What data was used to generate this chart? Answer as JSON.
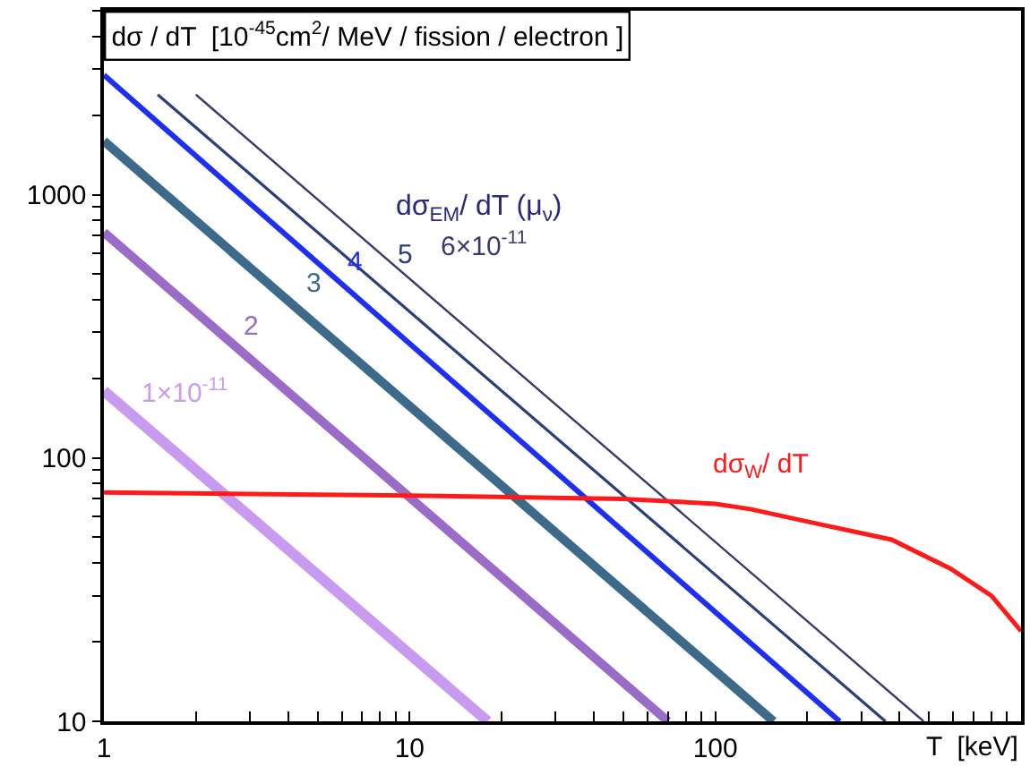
{
  "chart_data": {
    "type": "line",
    "title": "dσ / dT  [10$^{-45}$cm$^{2}$/ MeV / fission / electron ]",
    "xlabel": "T  [keV]",
    "annotations": [
      "dσ$_{EM}$/ dT (μ$_{ν}$)"
    ],
    "log": "xy",
    "legend": false,
    "marker": "none",
    "line_style": "solid",
    "xlim": [
      1,
      1000
    ],
    "ylim": [
      10,
      5000
    ],
    "xticks": [
      1,
      {
        "value": 2,
        "label": null
      },
      {
        "value": 3,
        "label": null
      },
      {
        "value": 4,
        "label": null
      },
      {
        "value": 5,
        "label": null
      },
      {
        "value": 6,
        "label": null
      },
      {
        "value": 7,
        "label": null
      },
      {
        "value": 8,
        "label": null
      },
      {
        "value": 9,
        "label": null
      },
      10,
      {
        "value": 20,
        "label": null
      },
      {
        "value": 30,
        "label": null
      },
      {
        "value": 40,
        "label": null
      },
      {
        "value": 50,
        "label": null
      },
      {
        "value": 60,
        "label": null
      },
      {
        "value": 70,
        "label": null
      },
      {
        "value": 80,
        "label": null
      },
      {
        "value": 90,
        "label": null
      },
      100,
      {
        "value": 200,
        "label": null
      },
      {
        "value": 300,
        "label": null
      },
      {
        "value": 400,
        "label": null
      },
      {
        "value": 500,
        "label": null
      },
      {
        "value": 600,
        "label": null
      },
      {
        "value": 700,
        "label": null
      },
      {
        "value": 800,
        "label": null
      },
      {
        "value": 900,
        "label": null
      },
      {
        "value": 1000,
        "label": null
      }
    ],
    "yticks": [
      10,
      {
        "value": 20,
        "label": null
      },
      {
        "value": 30,
        "label": null
      },
      {
        "value": 40,
        "label": null
      },
      {
        "value": 50,
        "label": null
      },
      {
        "value": 60,
        "label": null
      },
      {
        "value": 70,
        "label": null
      },
      {
        "value": 80,
        "label": null
      },
      {
        "value": 90,
        "label": null
      },
      100,
      {
        "value": 200,
        "label": null
      },
      {
        "value": 300,
        "label": null
      },
      {
        "value": 400,
        "label": null
      },
      {
        "value": 500,
        "label": null
      },
      {
        "value": 600,
        "label": null
      },
      {
        "value": 700,
        "label": null
      },
      {
        "value": 800,
        "label": null
      },
      {
        "value": 900,
        "label": null
      },
      1000,
      {
        "value": 2000,
        "label": null
      },
      {
        "value": 3000,
        "label": null
      },
      {
        "value": 4000,
        "label": null
      },
      {
        "value": 5000,
        "label": null
      }
    ],
    "series": [
      {
        "name": "1×10$^{-11}$",
        "color": "#c89bf0",
        "x": [
          1,
          18
        ],
        "values": [
          180,
          10
        ]
      },
      {
        "name": "2",
        "color": "#9b6bc8",
        "x": [
          1,
          70
        ],
        "values": [
          720,
          10
        ]
      },
      {
        "name": "3",
        "color": "#3d6a8a",
        "x": [
          1,
          155
        ],
        "values": [
          1600,
          10
        ]
      },
      {
        "name": "4",
        "color": "#1f2ff0",
        "x": [
          1,
          255
        ],
        "values": [
          2850,
          10
        ]
      },
      {
        "name": "5",
        "color": "#2a3f7a",
        "x": [
          1.5,
          360
        ],
        "values": [
          2400,
          10
        ]
      },
      {
        "name": "6×10$^{-11}$",
        "color": "#3a3a6a",
        "x": [
          2,
          480
        ],
        "values": [
          2400,
          10
        ]
      },
      {
        "name": "dσ$_{W}$/ dT",
        "color": "#ff1a1a",
        "x": [
          1,
          10,
          50,
          100,
          130,
          220,
          377,
          588,
          800,
          1000
        ],
        "values": [
          74,
          72,
          70,
          67,
          64,
          56,
          49,
          38,
          30,
          22
        ]
      }
    ]
  }
}
